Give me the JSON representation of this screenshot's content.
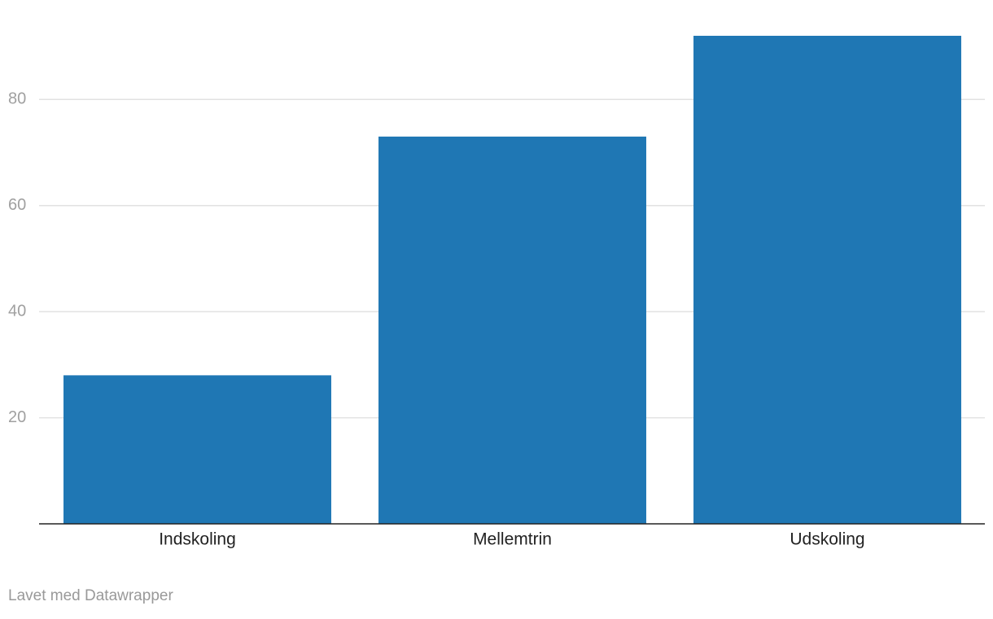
{
  "chart_data": {
    "type": "bar",
    "categories": [
      "Indskoling",
      "Mellemtrin",
      "Udskoling"
    ],
    "values": [
      28,
      73,
      92
    ],
    "color": "#1f77b4",
    "ylim": [
      0,
      92
    ],
    "yticks": [
      20,
      40,
      60,
      80
    ],
    "grid": true,
    "credit": "Lavet med Datawrapper"
  }
}
